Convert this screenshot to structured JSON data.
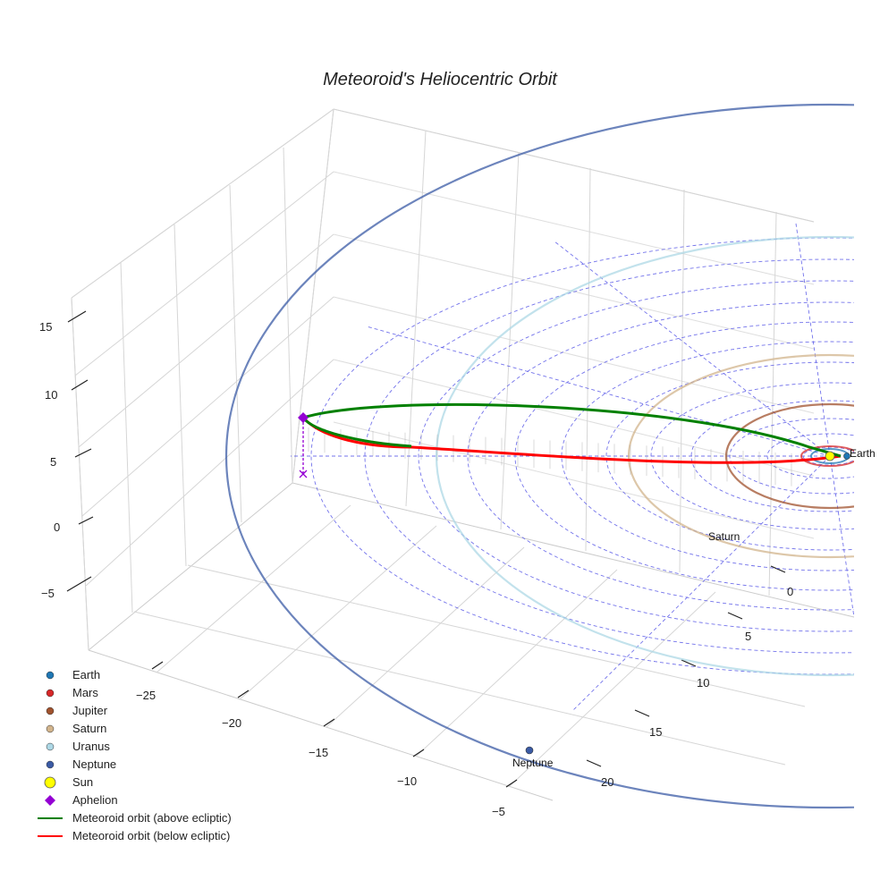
{
  "chart_data": {
    "type": "line",
    "title": "Meteoroid's Heliocentric Orbit",
    "x_ticks": [
      "−25",
      "−20",
      "−15",
      "−10",
      "−5"
    ],
    "y_ticks": [
      "0",
      "5",
      "10",
      "15",
      "20"
    ],
    "z_ticks": [
      "−5",
      "0",
      "5",
      "10",
      "15"
    ],
    "planets": [
      {
        "name": "Earth",
        "orbit_radius_au": 1.0,
        "color": "#1f77b4",
        "label": "Earth"
      },
      {
        "name": "Mars",
        "orbit_radius_au": 1.52,
        "color": "#d62728",
        "label": ""
      },
      {
        "name": "Jupiter",
        "orbit_radius_au": 5.2,
        "color": "#a0522d",
        "label": ""
      },
      {
        "name": "Saturn",
        "orbit_radius_au": 9.5,
        "color": "#d2b48c",
        "label": "Saturn"
      },
      {
        "name": "Uranus",
        "orbit_radius_au": 19.2,
        "color": "#add8e6",
        "label": ""
      },
      {
        "name": "Neptune",
        "orbit_radius_au": 30.1,
        "color": "#3b5ba5",
        "label": "Neptune"
      }
    ],
    "sun": {
      "name": "Sun",
      "color": "#ffff00"
    },
    "aphelion": {
      "name": "Aphelion",
      "color": "#9400d3"
    },
    "meteoroid": {
      "above_label": "Meteoroid orbit (above ecliptic)",
      "below_label": "Meteoroid orbit (below ecliptic)",
      "above_color": "#008000",
      "below_color": "#ff0000"
    },
    "legend": [
      {
        "label": "Earth",
        "marker": "dot",
        "color": "#1f77b4"
      },
      {
        "label": "Mars",
        "marker": "dot",
        "color": "#d62728"
      },
      {
        "label": "Jupiter",
        "marker": "dot",
        "color": "#a0522d"
      },
      {
        "label": "Saturn",
        "marker": "dot",
        "color": "#d2b48c"
      },
      {
        "label": "Uranus",
        "marker": "dot",
        "color": "#add8e6"
      },
      {
        "label": "Neptune",
        "marker": "dot",
        "color": "#3b5ba5"
      },
      {
        "label": "Sun",
        "marker": "sun",
        "color": "#ffff00"
      },
      {
        "label": "Aphelion",
        "marker": "diamond",
        "color": "#9400d3"
      },
      {
        "label": "Meteoroid orbit (above ecliptic)",
        "marker": "line",
        "color": "#008000"
      },
      {
        "label": "Meteoroid orbit (below ecliptic)",
        "marker": "line",
        "color": "#ff0000"
      }
    ]
  }
}
